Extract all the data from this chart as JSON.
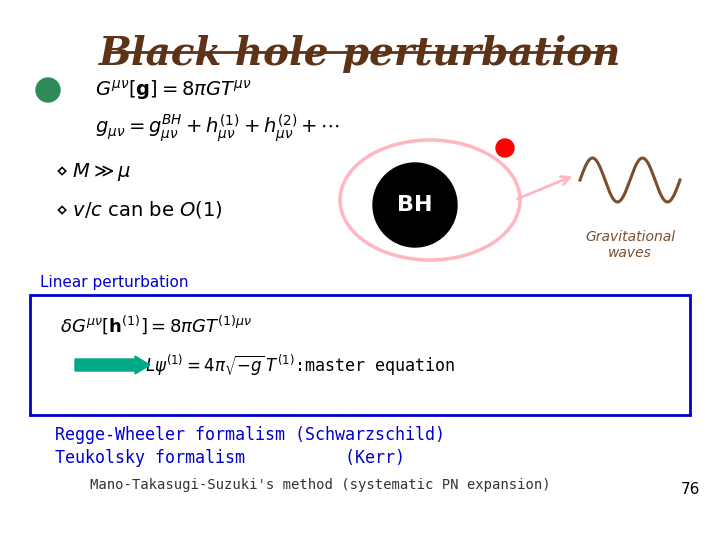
{
  "title": "Black hole perturbation",
  "title_color": "#5C3317",
  "title_fontsize": 28,
  "bg_color": "#FFFFFF",
  "slide_number": "76",
  "eq1": "$G^{\\mu\\nu}[\\mathbf{g}] = 8\\pi G T^{\\mu\\nu}$",
  "eq2": "$g_{\\mu\\nu} = g^{BH}_{\\mu\\nu} + h^{(1)}_{\\mu\\nu} + h^{(2)}_{\\mu\\nu} + \\cdots$",
  "bullet1": "$\\diamond\\; M \\gg \\mu$",
  "bullet2": "$\\diamond\\; v/c$ can be $O(1)$",
  "bh_label": "BH",
  "bh_color": "#000000",
  "bh_text_color": "#FFFFFF",
  "gw_label": "Gravitational\nwaves",
  "gw_color": "#7B4F2E",
  "orbit_color": "#FFB6C1",
  "dot_color": "#FF0000",
  "box_color": "#0000CD",
  "box_label": "Linear perturbation",
  "eq3": "$\\delta G^{\\mu\\nu}[\\mathbf{h}^{(1)}] = 8\\pi G T^{(1)\\mu\\nu}$",
  "eq4": "$L\\psi^{(1)} = 4\\pi\\sqrt{-g}\\, T^{(1)}$:master equation",
  "arrow_color": "#00AA88",
  "regge": "Regge-Wheeler formalism (Schwarzschild)",
  "teukolsky": "Teukolsky formalism          (Kerr)",
  "mano": "Mano-Takasugi-Suzuki's method (systematic PN expansion)",
  "formalism_color": "#0000CD",
  "mano_color": "#333333"
}
